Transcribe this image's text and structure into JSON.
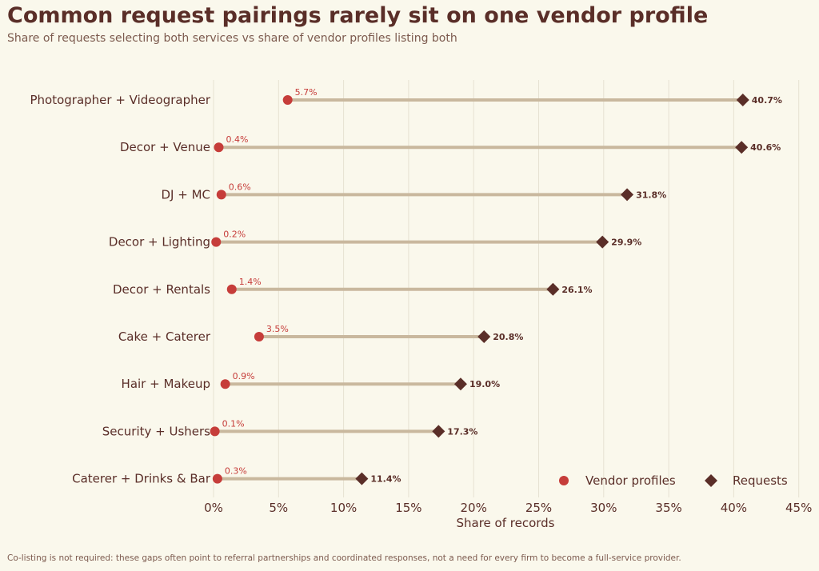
{
  "header": {
    "title": "Common request pairings rarely sit on one vendor profile",
    "subtitle": "Share of requests selecting both services vs share of vendor profiles listing both"
  },
  "footer": {
    "note": "Co-listing is not required: these gaps often point to referral partnerships and coordinated responses, not a need for every firm to become a full-service provider."
  },
  "colors": {
    "background": "#faf8ec",
    "vendor": "#c63d3a",
    "requests": "#5a2e28",
    "connector": "#c9b89e",
    "grid": "#e6e2d2",
    "text": "#5a2e28"
  },
  "chart_data": {
    "type": "dumbbell",
    "title": "Common request pairings rarely sit on one vendor profile",
    "subtitle": "Share of requests selecting both services vs share of vendor profiles listing both",
    "xlabel": "Share of records",
    "ylabel": "",
    "xlim": [
      0,
      45
    ],
    "xticks": [
      0,
      5,
      10,
      15,
      20,
      25,
      30,
      35,
      40,
      45
    ],
    "xtick_labels": [
      "0%",
      "5%",
      "10%",
      "15%",
      "20%",
      "25%",
      "30%",
      "35%",
      "40%",
      "45%"
    ],
    "grid": "vertical",
    "legend": "bottom-right",
    "categories": [
      "Photographer + Videographer",
      "Decor + Venue",
      "DJ + MC",
      "Decor + Lighting",
      "Decor + Rentals",
      "Cake + Caterer",
      "Hair + Makeup",
      "Security + Ushers",
      "Caterer + Drinks & Bar"
    ],
    "series": [
      {
        "name": "Vendor profiles",
        "marker": "circle",
        "values": [
          5.7,
          0.4,
          0.6,
          0.2,
          1.4,
          3.5,
          0.9,
          0.1,
          0.3
        ],
        "labels": [
          "5.7%",
          "0.4%",
          "0.6%",
          "0.2%",
          "1.4%",
          "3.5%",
          "0.9%",
          "0.1%",
          "0.3%"
        ]
      },
      {
        "name": "Requests",
        "marker": "diamond",
        "values": [
          40.7,
          40.6,
          31.8,
          29.9,
          26.1,
          20.8,
          19.0,
          17.3,
          11.4
        ],
        "labels": [
          "40.7%",
          "40.6%",
          "31.8%",
          "29.9%",
          "26.1%",
          "20.8%",
          "19.0%",
          "17.3%",
          "11.4%"
        ]
      }
    ]
  }
}
